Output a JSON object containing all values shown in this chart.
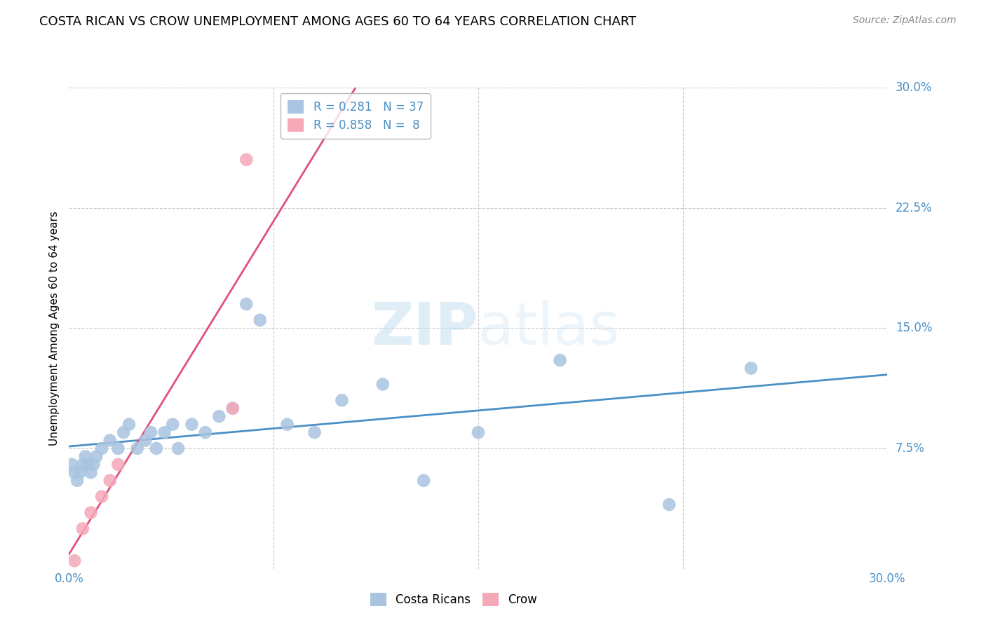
{
  "title": "COSTA RICAN VS CROW UNEMPLOYMENT AMONG AGES 60 TO 64 YEARS CORRELATION CHART",
  "source": "Source: ZipAtlas.com",
  "ylabel": "Unemployment Among Ages 60 to 64 years",
  "xlim": [
    0.0,
    0.3
  ],
  "ylim": [
    0.0,
    0.3
  ],
  "background_color": "#ffffff",
  "grid_color": "#cccccc",
  "costa_rican_color": "#a8c4e0",
  "crow_color": "#f4a8b8",
  "costa_rican_line_color": "#4a90c4",
  "crow_line_color": "#e05080",
  "costa_rican_R": 0.281,
  "costa_rican_N": 37,
  "crow_R": 0.858,
  "crow_N": 8,
  "costa_ricans_x": [
    0.001,
    0.002,
    0.003,
    0.004,
    0.005,
    0.006,
    0.007,
    0.008,
    0.009,
    0.01,
    0.012,
    0.015,
    0.018,
    0.02,
    0.022,
    0.025,
    0.028,
    0.03,
    0.032,
    0.035,
    0.038,
    0.04,
    0.045,
    0.05,
    0.055,
    0.06,
    0.065,
    0.07,
    0.08,
    0.09,
    0.1,
    0.115,
    0.13,
    0.15,
    0.18,
    0.22,
    0.25
  ],
  "costa_ricans_y": [
    0.065,
    0.06,
    0.055,
    0.06,
    0.065,
    0.07,
    0.065,
    0.06,
    0.065,
    0.07,
    0.075,
    0.08,
    0.075,
    0.085,
    0.09,
    0.075,
    0.08,
    0.085,
    0.075,
    0.085,
    0.09,
    0.075,
    0.09,
    0.085,
    0.095,
    0.1,
    0.165,
    0.155,
    0.09,
    0.085,
    0.105,
    0.115,
    0.055,
    0.085,
    0.13,
    0.04,
    0.125
  ],
  "crows_x": [
    0.002,
    0.005,
    0.008,
    0.012,
    0.015,
    0.018,
    0.06,
    0.065
  ],
  "crows_y": [
    0.005,
    0.025,
    0.035,
    0.045,
    0.055,
    0.065,
    0.1,
    0.255
  ],
  "watermark_zip": "ZIP",
  "watermark_atlas": "atlas"
}
